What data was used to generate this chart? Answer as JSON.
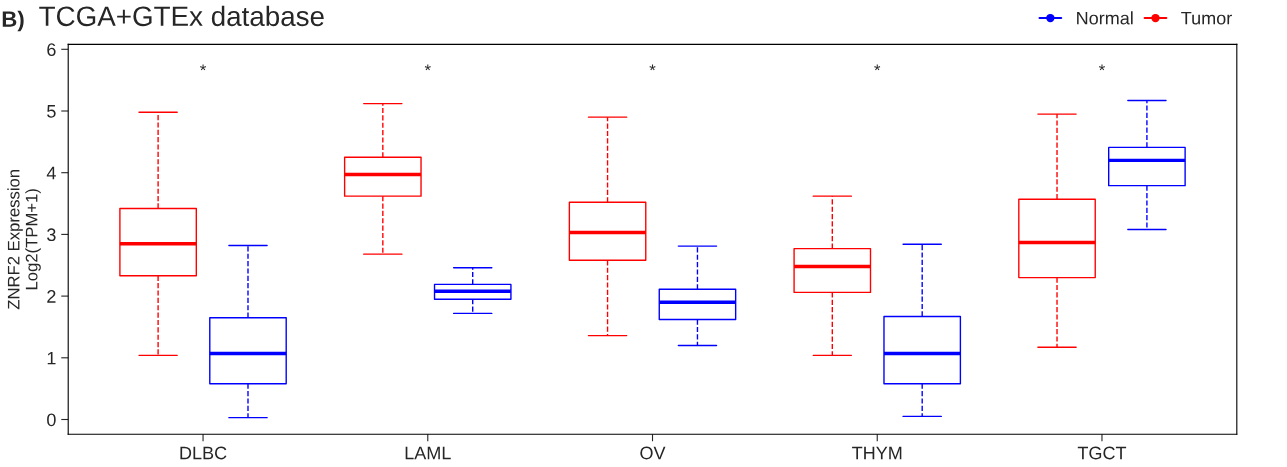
{
  "chart_data": {
    "type": "box",
    "title": "TCGA+GTEx database",
    "ylabel": "ZNRF2 Expression\nLog2(TPM+1)",
    "categories": [
      "DLBC",
      "LAML",
      "OV",
      "THYM",
      "TGCT"
    ],
    "series": [
      {
        "name": "Tumor",
        "color": "#ff0000",
        "boxes": [
          {
            "low": 1.04,
            "q1": 2.33,
            "median": 2.85,
            "q3": 3.42,
            "high": 4.98
          },
          {
            "low": 2.68,
            "q1": 3.62,
            "median": 3.97,
            "q3": 4.25,
            "high": 5.12
          },
          {
            "low": 1.36,
            "q1": 2.58,
            "median": 3.03,
            "q3": 3.52,
            "high": 4.9
          },
          {
            "low": 1.04,
            "q1": 2.06,
            "median": 2.48,
            "q3": 2.77,
            "high": 3.62
          },
          {
            "low": 1.17,
            "q1": 2.3,
            "median": 2.87,
            "q3": 3.57,
            "high": 4.95
          }
        ]
      },
      {
        "name": "Normal",
        "color": "#0000ff",
        "boxes": [
          {
            "low": 0.03,
            "q1": 0.58,
            "median": 1.07,
            "q3": 1.65,
            "high": 2.82
          },
          {
            "low": 1.72,
            "q1": 1.95,
            "median": 2.08,
            "q3": 2.19,
            "high": 2.46
          },
          {
            "low": 1.2,
            "q1": 1.62,
            "median": 1.9,
            "q3": 2.11,
            "high": 2.81
          },
          {
            "low": 0.05,
            "q1": 0.58,
            "median": 1.07,
            "q3": 1.67,
            "high": 2.84
          },
          {
            "low": 3.08,
            "q1": 3.79,
            "median": 4.2,
            "q3": 4.41,
            "high": 5.17
          }
        ]
      }
    ],
    "ylim": [
      -0.24,
      6.08
    ],
    "yticks": [
      0,
      1,
      2,
      3,
      4,
      5,
      6
    ],
    "grid": false,
    "legend": "top right",
    "line_style": "dashed",
    "annotations": [
      "B)",
      "*",
      "*",
      "*",
      "*",
      "*"
    ]
  }
}
